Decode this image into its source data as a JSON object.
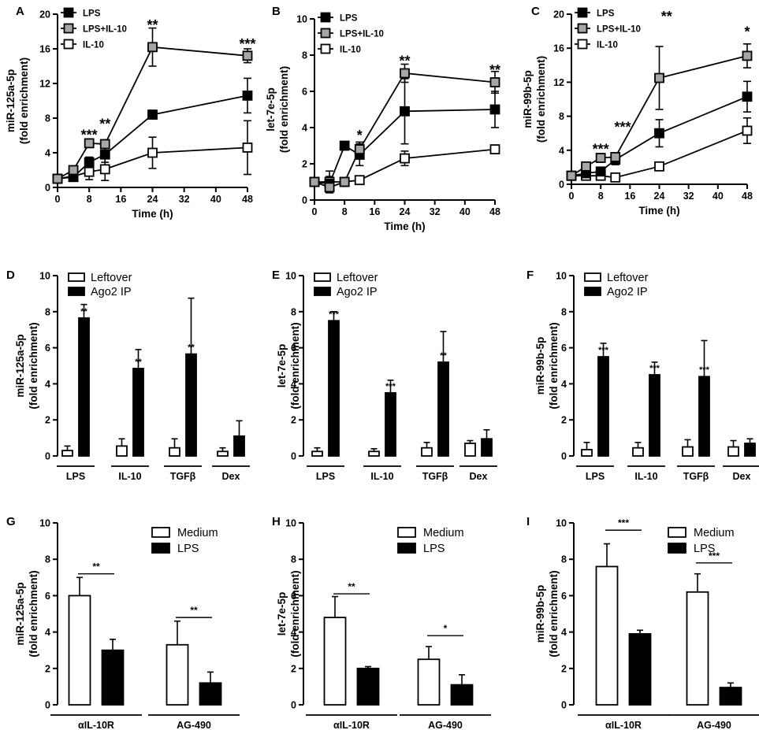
{
  "chart_data": [
    {
      "panel": "A",
      "type": "line",
      "ylabel": "miR-125a-5p",
      "ylabel2": "(fold enrichment)",
      "xlabel": "Time (h)",
      "ylim": [
        0,
        20
      ],
      "yticks": [
        0,
        4,
        8,
        12,
        16,
        20
      ],
      "xlim": [
        0,
        48
      ],
      "xticks": [
        0,
        8,
        16,
        24,
        32,
        40,
        48
      ],
      "legend": [
        "LPS",
        "LPS+IL-10",
        "IL-10"
      ],
      "series": [
        {
          "name": "LPS",
          "x": [
            0,
            4,
            8,
            12,
            24,
            48
          ],
          "values": [
            1,
            1.2,
            2.9,
            3.8,
            8.4,
            10.6
          ],
          "err": [
            0.3,
            0.3,
            0.6,
            0.9,
            0.5,
            2.0
          ]
        },
        {
          "name": "LPS+IL-10",
          "x": [
            0,
            4,
            8,
            12,
            24,
            48
          ],
          "values": [
            1,
            2.0,
            5.1,
            5.0,
            16.2,
            15.2
          ],
          "err": [
            0.2,
            0.4,
            0.4,
            0.5,
            2.2,
            0.8
          ]
        },
        {
          "name": "IL-10",
          "x": [
            0,
            4,
            8,
            12,
            24,
            48
          ],
          "values": [
            1,
            1.3,
            1.8,
            2.1,
            4.0,
            4.6
          ],
          "err": [
            0.3,
            0.4,
            0.9,
            1.3,
            1.8,
            3.1
          ]
        }
      ],
      "annotations": [
        {
          "x": 8,
          "y": 6.3,
          "text": "***"
        },
        {
          "x": 12,
          "y": 7.6,
          "text": "**"
        },
        {
          "x": 24,
          "y": 19.0,
          "text": "**"
        },
        {
          "x": 48,
          "y": 16.8,
          "text": "***"
        }
      ]
    },
    {
      "panel": "B",
      "type": "line",
      "ylabel": "let-7e-5p",
      "ylabel2": "(fold enrichment)",
      "xlabel": "Time (h)",
      "ylim": [
        0,
        10
      ],
      "yticks": [
        0,
        2,
        4,
        6,
        8,
        10
      ],
      "xlim": [
        0,
        48
      ],
      "xticks": [
        0,
        8,
        16,
        24,
        32,
        40,
        48
      ],
      "legend": [
        "LPS",
        "LPS+IL-10",
        "IL-10"
      ],
      "series": [
        {
          "name": "LPS",
          "x": [
            0,
            4,
            8,
            12,
            24,
            48
          ],
          "values": [
            1,
            0.9,
            3.0,
            2.5,
            4.9,
            5.0
          ],
          "err": [
            0.2,
            0.4,
            0.2,
            0.6,
            1.8,
            1.0
          ]
        },
        {
          "name": "LPS+IL-10",
          "x": [
            0,
            4,
            8,
            12,
            24,
            48
          ],
          "values": [
            1,
            0.7,
            1.0,
            2.8,
            7.0,
            6.5
          ],
          "err": [
            0.2,
            0.3,
            0.2,
            0.4,
            0.5,
            0.6
          ]
        },
        {
          "name": "IL-10",
          "x": [
            0,
            4,
            8,
            12,
            24,
            48
          ],
          "values": [
            1,
            1.0,
            1.0,
            1.1,
            2.3,
            2.8
          ],
          "err": [
            0.2,
            0.6,
            0.2,
            0.2,
            0.4,
            0.2
          ]
        }
      ],
      "annotations": [
        {
          "x": 12,
          "y": 3.7,
          "text": "*"
        },
        {
          "x": 24,
          "y": 7.8,
          "text": "**"
        },
        {
          "x": 48,
          "y": 7.3,
          "text": "**"
        }
      ]
    },
    {
      "panel": "C",
      "type": "line",
      "ylabel": "miR-99b-5p",
      "ylabel2": "(fold enrichment)",
      "xlabel": "Time (h)",
      "ylim": [
        0,
        20
      ],
      "yticks": [
        0,
        4,
        8,
        12,
        16,
        20
      ],
      "xlim": [
        0,
        48
      ],
      "xticks": [
        0,
        8,
        16,
        24,
        32,
        40,
        48
      ],
      "legend": [
        "LPS",
        "LPS+IL-10",
        "IL-10"
      ],
      "series": [
        {
          "name": "LPS",
          "x": [
            0,
            4,
            8,
            12,
            24,
            48
          ],
          "values": [
            1,
            1.3,
            1.5,
            2.9,
            6.0,
            10.3
          ],
          "err": [
            0.3,
            0.3,
            0.4,
            0.6,
            1.6,
            1.8
          ]
        },
        {
          "name": "LPS+IL-10",
          "x": [
            0,
            4,
            8,
            12,
            24,
            48
          ],
          "values": [
            1,
            2.1,
            3.1,
            3.2,
            12.5,
            15.1
          ],
          "err": [
            0.2,
            0.3,
            0.3,
            0.4,
            3.7,
            1.4
          ]
        },
        {
          "name": "IL-10",
          "x": [
            0,
            4,
            8,
            12,
            24,
            48
          ],
          "values": [
            1,
            1.0,
            1.0,
            0.8,
            2.1,
            6.3
          ],
          "err": [
            0.2,
            0.3,
            0.2,
            0.3,
            0.3,
            1.5
          ]
        }
      ],
      "annotations": [
        {
          "x": 8,
          "y": 4.4,
          "text": "***"
        },
        {
          "x": 14,
          "y": 7.0,
          "text": "***"
        },
        {
          "x": 26,
          "y": 20.0,
          "text": "**"
        },
        {
          "x": 48,
          "y": 18.2,
          "text": "*"
        }
      ]
    },
    {
      "panel": "D",
      "type": "bar",
      "ylabel": "miR-125a-5p",
      "ylabel2": "(fold enrichment)",
      "ylim": [
        0,
        10
      ],
      "yticks": [
        0,
        2,
        4,
        6,
        8,
        10
      ],
      "categories": [
        "LPS",
        "IL-10",
        "TGFβ",
        "Dex"
      ],
      "series": [
        {
          "name": "Leftover",
          "fill": "#ffffff",
          "values": [
            0.3,
            0.55,
            0.45,
            0.25
          ],
          "err": [
            0.25,
            0.4,
            0.5,
            0.2
          ]
        },
        {
          "name": "Ago2 IP",
          "fill": "#000000",
          "values": [
            7.65,
            4.85,
            5.65,
            1.1
          ],
          "err": [
            0.75,
            1.05,
            3.1,
            0.85
          ]
        }
      ],
      "annotations": [
        "**",
        "**",
        "**",
        ""
      ]
    },
    {
      "panel": "E",
      "type": "bar",
      "ylabel": "let-7e-5p",
      "ylabel2": "(fold enrichment)",
      "ylim": [
        0,
        10
      ],
      "yticks": [
        0,
        2,
        4,
        6,
        8,
        10
      ],
      "categories": [
        "LPS",
        "IL-10",
        "TGFβ",
        "Dex"
      ],
      "series": [
        {
          "name": "Leftover",
          "fill": "#ffffff",
          "values": [
            0.25,
            0.25,
            0.45,
            0.7
          ],
          "err": [
            0.2,
            0.15,
            0.3,
            0.15
          ]
        },
        {
          "name": "Ago2 IP",
          "fill": "#000000",
          "values": [
            7.5,
            3.5,
            5.2,
            0.95
          ],
          "err": [
            0.5,
            0.7,
            1.7,
            0.5
          ]
        }
      ],
      "annotations": [
        "***",
        "***",
        "**",
        ""
      ]
    },
    {
      "panel": "F",
      "type": "bar",
      "ylabel": "miR-99b-5p",
      "ylabel2": "(fold enrichment)",
      "ylim": [
        0,
        10
      ],
      "yticks": [
        0,
        2,
        4,
        6,
        8,
        10
      ],
      "categories": [
        "LPS",
        "IL-10",
        "TGFβ",
        "Dex"
      ],
      "series": [
        {
          "name": "Leftover",
          "fill": "#ffffff",
          "values": [
            0.35,
            0.45,
            0.5,
            0.5
          ],
          "err": [
            0.4,
            0.3,
            0.4,
            0.35
          ]
        },
        {
          "name": "Ago2 IP",
          "fill": "#000000",
          "values": [
            5.5,
            4.5,
            4.4,
            0.7
          ],
          "err": [
            0.75,
            0.7,
            2.0,
            0.25
          ]
        }
      ],
      "annotations": [
        "***",
        "***",
        "***",
        ""
      ]
    },
    {
      "panel": "G",
      "type": "bar",
      "ylabel": "miR-125a-5p",
      "ylabel2": "(fold enrichment)",
      "ylim": [
        0,
        10
      ],
      "yticks": [
        0,
        2,
        4,
        6,
        8,
        10
      ],
      "categories": [
        "αIL-10R",
        "AG-490"
      ],
      "series": [
        {
          "name": "Medium",
          "fill": "#ffffff",
          "values": [
            6.0,
            3.3
          ],
          "err": [
            1.0,
            1.3
          ]
        },
        {
          "name": "LPS",
          "fill": "#000000",
          "values": [
            3.0,
            1.2
          ],
          "err": [
            0.6,
            0.6
          ]
        }
      ],
      "brackets": [
        {
          "y": 7.2,
          "text": "**"
        },
        {
          "y": 4.8,
          "text": "**"
        }
      ]
    },
    {
      "panel": "H",
      "type": "bar",
      "ylabel": "let-7e-5p",
      "ylabel2": "(fold enrichment)",
      "ylim": [
        0,
        10
      ],
      "yticks": [
        0,
        2,
        4,
        6,
        8,
        10
      ],
      "categories": [
        "αIL-10R",
        "AG-490"
      ],
      "series": [
        {
          "name": "Medium",
          "fill": "#ffffff",
          "values": [
            4.8,
            2.5
          ],
          "err": [
            1.15,
            0.7
          ]
        },
        {
          "name": "LPS",
          "fill": "#000000",
          "values": [
            2.0,
            1.1
          ],
          "err": [
            0.1,
            0.55
          ]
        }
      ],
      "brackets": [
        {
          "y": 6.1,
          "text": "**"
        },
        {
          "y": 3.8,
          "text": "*"
        }
      ]
    },
    {
      "panel": "I",
      "type": "bar",
      "ylabel": "miR-99b-5p",
      "ylabel2": "(fold enrichment)",
      "ylim": [
        0,
        10
      ],
      "yticks": [
        0,
        2,
        4,
        6,
        8,
        10
      ],
      "categories": [
        "αIL-10R",
        "AG-490"
      ],
      "series": [
        {
          "name": "Medium",
          "fill": "#ffffff",
          "values": [
            7.6,
            6.2
          ],
          "err": [
            1.25,
            1.0
          ]
        },
        {
          "name": "LPS",
          "fill": "#000000",
          "values": [
            3.9,
            0.95
          ],
          "err": [
            0.2,
            0.25
          ]
        }
      ],
      "brackets": [
        {
          "y": 9.6,
          "text": "***"
        },
        {
          "y": 7.8,
          "text": "***"
        }
      ]
    }
  ]
}
